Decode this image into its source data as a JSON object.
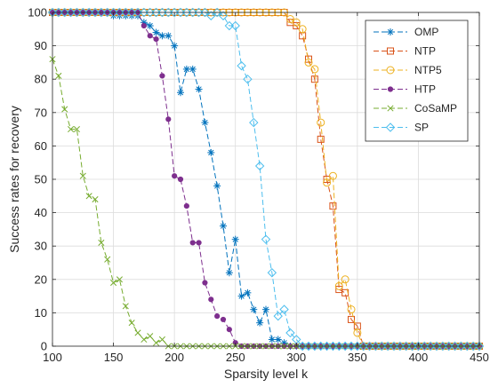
{
  "chart_data": {
    "type": "line",
    "xlabel": "Sparsity level k",
    "ylabel": "Success rates for recovery",
    "xlim": [
      100,
      450
    ],
    "ylim": [
      0,
      100
    ],
    "xticks": [
      100,
      150,
      200,
      250,
      300,
      350,
      400,
      450
    ],
    "yticks": [
      0,
      10,
      20,
      30,
      40,
      50,
      60,
      70,
      80,
      90,
      100
    ],
    "grid": true,
    "legend_position": "top-right",
    "series": [
      {
        "name": "OMP",
        "color": "#0072BD",
        "marker": "asterisk",
        "x": [
          100,
          105,
          110,
          115,
          120,
          125,
          130,
          135,
          140,
          145,
          150,
          155,
          160,
          165,
          170,
          175,
          180,
          185,
          190,
          195,
          200,
          205,
          210,
          215,
          220,
          225,
          230,
          235,
          240,
          245,
          250,
          255,
          260,
          265,
          270,
          275,
          280,
          285,
          290,
          295,
          300,
          305,
          310,
          315,
          320,
          325,
          330,
          335,
          340,
          345,
          350,
          355,
          360,
          365,
          370,
          375,
          380,
          385,
          390,
          395,
          400,
          405,
          410,
          415,
          420,
          425,
          430,
          435,
          440,
          445,
          450
        ],
        "y": [
          100,
          100,
          100,
          100,
          100,
          100,
          100,
          100,
          100,
          100,
          99,
          99,
          99,
          99,
          99,
          97,
          96,
          94,
          93,
          93,
          90,
          76,
          83,
          83,
          77,
          67,
          58,
          48,
          36,
          22,
          32,
          15,
          16,
          11,
          7,
          11,
          2,
          2,
          1,
          0,
          0,
          0,
          0,
          0,
          0,
          0,
          0,
          0,
          0,
          0,
          0,
          0,
          0,
          0,
          0,
          0,
          0,
          0,
          0,
          0,
          0,
          0,
          0,
          0,
          0,
          0,
          0,
          0,
          0,
          0,
          0
        ]
      },
      {
        "name": "NTP",
        "color": "#D95319",
        "marker": "square",
        "x": [
          100,
          105,
          110,
          115,
          120,
          125,
          130,
          135,
          140,
          145,
          150,
          155,
          160,
          165,
          170,
          175,
          180,
          185,
          190,
          195,
          200,
          205,
          210,
          215,
          220,
          225,
          230,
          235,
          240,
          245,
          250,
          255,
          260,
          265,
          270,
          275,
          280,
          285,
          290,
          295,
          300,
          305,
          310,
          315,
          320,
          325,
          330,
          335,
          340,
          345,
          350,
          355,
          360,
          365,
          370,
          375,
          380,
          385,
          390,
          395,
          400,
          405,
          410,
          415,
          420,
          425,
          430,
          435,
          440,
          445,
          450
        ],
        "y": [
          100,
          100,
          100,
          100,
          100,
          100,
          100,
          100,
          100,
          100,
          100,
          100,
          100,
          100,
          100,
          100,
          100,
          100,
          100,
          100,
          100,
          100,
          100,
          100,
          100,
          100,
          100,
          100,
          100,
          100,
          100,
          100,
          100,
          100,
          100,
          100,
          100,
          100,
          100,
          97,
          96,
          93,
          86,
          80,
          62,
          50,
          42,
          17,
          16,
          8,
          6,
          0,
          0,
          0,
          0,
          0,
          0,
          0,
          0,
          0,
          0,
          0,
          0,
          0,
          0,
          0,
          0,
          0,
          0,
          0,
          0
        ]
      },
      {
        "name": "NTP5",
        "color": "#EDB120",
        "marker": "circle",
        "x": [
          100,
          105,
          110,
          115,
          120,
          125,
          130,
          135,
          140,
          145,
          150,
          155,
          160,
          165,
          170,
          175,
          180,
          185,
          190,
          195,
          200,
          205,
          210,
          215,
          220,
          225,
          230,
          235,
          240,
          245,
          250,
          255,
          260,
          265,
          270,
          275,
          280,
          285,
          290,
          295,
          300,
          305,
          310,
          315,
          320,
          325,
          330,
          335,
          340,
          345,
          350,
          355,
          360,
          365,
          370,
          375,
          380,
          385,
          390,
          395,
          400,
          405,
          410,
          415,
          420,
          425,
          430,
          435,
          440,
          445,
          450
        ],
        "y": [
          100,
          100,
          100,
          100,
          100,
          100,
          100,
          100,
          100,
          100,
          100,
          100,
          100,
          100,
          100,
          100,
          100,
          100,
          100,
          100,
          100,
          100,
          100,
          100,
          100,
          100,
          100,
          100,
          100,
          100,
          100,
          100,
          100,
          100,
          100,
          100,
          100,
          100,
          100,
          98,
          97,
          95,
          85,
          83,
          67,
          49,
          51,
          18,
          20,
          11,
          4,
          0,
          0,
          0,
          0,
          0,
          0,
          0,
          0,
          0,
          0,
          0,
          0,
          0,
          0,
          0,
          0,
          0,
          0,
          0,
          0
        ]
      },
      {
        "name": "HTP",
        "color": "#7E2F8E",
        "marker": "dot",
        "x": [
          100,
          105,
          110,
          115,
          120,
          125,
          130,
          135,
          140,
          145,
          150,
          155,
          160,
          165,
          170,
          175,
          180,
          185,
          190,
          195,
          200,
          205,
          210,
          215,
          220,
          225,
          230,
          235,
          240,
          245,
          250,
          255,
          260,
          265,
          270,
          275,
          280,
          285,
          290,
          295,
          300,
          305,
          310,
          315,
          320,
          325,
          330,
          335,
          340,
          345,
          350,
          355,
          360,
          365,
          370,
          375,
          380,
          385,
          390,
          395,
          400,
          405,
          410,
          415,
          420,
          425,
          430,
          435,
          440,
          445,
          450
        ],
        "y": [
          100,
          100,
          100,
          100,
          100,
          100,
          100,
          100,
          100,
          100,
          100,
          100,
          100,
          100,
          100,
          96,
          93,
          92,
          81,
          68,
          51,
          50,
          42,
          31,
          31,
          19,
          14,
          9,
          8,
          5,
          1,
          0,
          0,
          0,
          0,
          0,
          0,
          0,
          0,
          0,
          0,
          0,
          0,
          0,
          0,
          0,
          0,
          0,
          0,
          0,
          0,
          0,
          0,
          0,
          0,
          0,
          0,
          0,
          0,
          0,
          0,
          0,
          0,
          0,
          0,
          0,
          0,
          0,
          0,
          0,
          0
        ]
      },
      {
        "name": "CoSaMP",
        "color": "#77AC30",
        "marker": "x",
        "x": [
          100,
          105,
          110,
          115,
          120,
          125,
          130,
          135,
          140,
          145,
          150,
          155,
          160,
          165,
          170,
          175,
          180,
          185,
          190,
          195,
          200,
          205,
          210,
          215,
          220,
          225,
          230,
          235,
          240,
          245,
          250,
          255,
          260,
          265,
          270,
          275,
          280,
          285,
          290,
          295,
          300,
          305,
          310,
          315,
          320,
          325,
          330,
          335,
          340,
          345,
          350,
          355,
          360,
          365,
          370,
          375,
          380,
          385,
          390,
          395,
          400,
          405,
          410,
          415,
          420,
          425,
          430,
          435,
          440,
          445,
          450
        ],
        "y": [
          86,
          81,
          71,
          65,
          65,
          51,
          45,
          44,
          31,
          26,
          19,
          20,
          12,
          7,
          4,
          2,
          3,
          1,
          2,
          0,
          0,
          0,
          0,
          0,
          0,
          0,
          0,
          0,
          0,
          0,
          0,
          0,
          0,
          0,
          0,
          0,
          0,
          0,
          0,
          0,
          0,
          0,
          0,
          0,
          0,
          0,
          0,
          0,
          0,
          0,
          0,
          0,
          0,
          0,
          0,
          0,
          0,
          0,
          0,
          0,
          0,
          0,
          0,
          0,
          0,
          0,
          0,
          0,
          0,
          0,
          0
        ]
      },
      {
        "name": "SP",
        "color": "#4DBEEE",
        "marker": "diamond",
        "x": [
          100,
          105,
          110,
          115,
          120,
          125,
          130,
          135,
          140,
          145,
          150,
          155,
          160,
          165,
          170,
          175,
          180,
          185,
          190,
          195,
          200,
          205,
          210,
          215,
          220,
          225,
          230,
          235,
          240,
          245,
          250,
          255,
          260,
          265,
          270,
          275,
          280,
          285,
          290,
          295,
          300,
          305,
          310,
          315,
          320,
          325,
          330,
          335,
          340,
          345,
          350,
          355,
          360,
          365,
          370,
          375,
          380,
          385,
          390,
          395,
          400,
          405,
          410,
          415,
          420,
          425,
          430,
          435,
          440,
          445,
          450
        ],
        "y": [
          100,
          100,
          100,
          100,
          100,
          100,
          100,
          100,
          100,
          100,
          100,
          100,
          100,
          100,
          100,
          100,
          100,
          100,
          100,
          100,
          100,
          100,
          100,
          100,
          100,
          100,
          99,
          100,
          99,
          96,
          96,
          84,
          80,
          67,
          54,
          32,
          22,
          9,
          11,
          4,
          2,
          0,
          0,
          0,
          0,
          0,
          0,
          0,
          0,
          0,
          0,
          0,
          0,
          0,
          0,
          0,
          0,
          0,
          0,
          0,
          0,
          0,
          0,
          0,
          0,
          0,
          0,
          0,
          0,
          0,
          0
        ]
      }
    ]
  }
}
